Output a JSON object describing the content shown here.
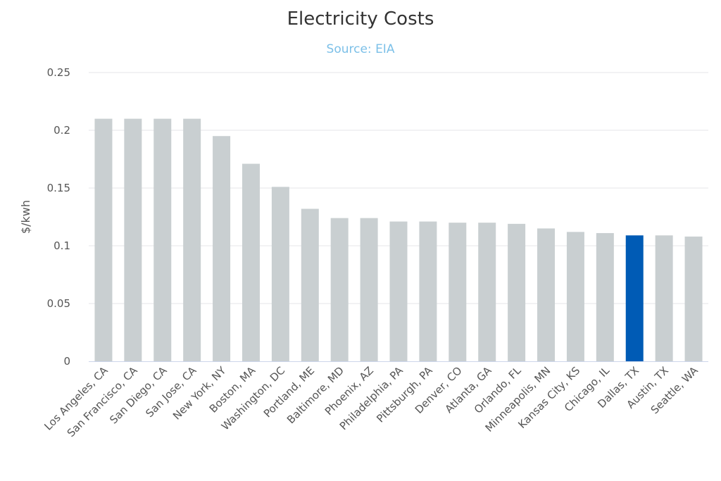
{
  "colors": {
    "bar": "#c9cfd1",
    "highlight": "#005bb5",
    "subtitle": "#7cc0e8",
    "grid": "#e4e6e8"
  },
  "chart_data": {
    "type": "bar",
    "title": "Electricity Costs",
    "subtitle": "Source: EIA",
    "xlabel": "",
    "ylabel": "$/kwh",
    "ylim": [
      0,
      0.25
    ],
    "yticks": [
      "0",
      "0.05",
      "0.1",
      "0.15",
      "0.2",
      "0.25"
    ],
    "grid": true,
    "highlight_category": "Dallas, TX",
    "categories": [
      "Los Angeles, CA",
      "San Francisco, CA",
      "San Diego, CA",
      "San Jose, CA",
      "New York, NY",
      "Boston, MA",
      "Washington, DC",
      "Portland, ME",
      "Baltimore, MD",
      "Phoenix, AZ",
      "Philadelphia, PA",
      "Pittsburgh, PA",
      "Denver, CO",
      "Atlanta, GA",
      "Orlando, FL",
      "Minneapolis, MN",
      "Kansas City, KS",
      "Chicago, IL",
      "Dallas, TX",
      "Austin, TX",
      "Seattle, WA"
    ],
    "values": [
      0.21,
      0.21,
      0.21,
      0.21,
      0.195,
      0.171,
      0.151,
      0.132,
      0.124,
      0.124,
      0.121,
      0.121,
      0.12,
      0.12,
      0.119,
      0.115,
      0.112,
      0.111,
      0.109,
      0.109,
      0.108
    ]
  }
}
